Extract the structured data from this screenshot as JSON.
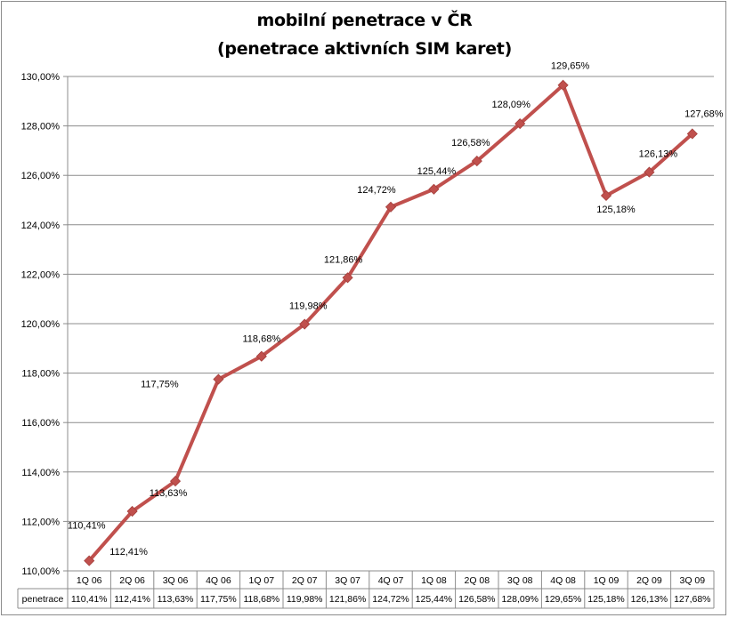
{
  "title_line1": "mobilní penetrace v ČR",
  "title_line2": "(penetrace aktivních SIM karet)",
  "chart_data": {
    "type": "line",
    "title": "mobilní penetrace v ČR (penetrace aktivních SIM karet)",
    "categories": [
      "1Q 06",
      "2Q 06",
      "3Q 06",
      "4Q 06",
      "1Q 07",
      "2Q 07",
      "3Q 07",
      "4Q 07",
      "1Q 08",
      "2Q 08",
      "3Q 08",
      "4Q 08",
      "1Q 09",
      "2Q 09",
      "3Q 09"
    ],
    "series": [
      {
        "name": "penetrace",
        "values": [
          110.41,
          112.41,
          113.63,
          117.75,
          118.68,
          119.98,
          121.86,
          124.72,
          125.44,
          126.58,
          128.09,
          129.65,
          125.18,
          126.13,
          127.68
        ],
        "labels": [
          "110,41%",
          "112,41%",
          "113,63%",
          "117,75%",
          "118,68%",
          "119,98%",
          "121,86%",
          "124,72%",
          "125,44%",
          "126,58%",
          "128,09%",
          "129,65%",
          "125,18%",
          "126,13%",
          "127,68%"
        ],
        "color": "#c0504d"
      }
    ],
    "ylim": [
      110,
      130
    ],
    "yticks": [
      "110,00%",
      "112,00%",
      "114,00%",
      "116,00%",
      "118,00%",
      "120,00%",
      "122,00%",
      "124,00%",
      "126,00%",
      "128,00%",
      "130,00%"
    ],
    "grid": true,
    "legend": "data table below x-axis",
    "table_header": "penetrace"
  }
}
